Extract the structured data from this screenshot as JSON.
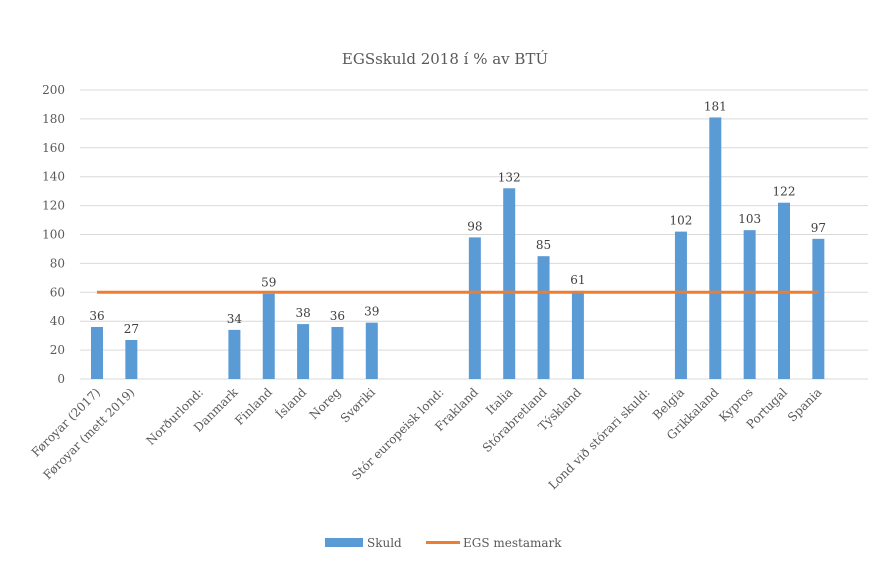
{
  "chart_data": {
    "type": "bar",
    "title": "EGSskuld 2018 í % av BTÚ",
    "xlabel": "",
    "ylabel": "",
    "ylim": [
      0,
      200
    ],
    "yticks": [
      0,
      20,
      40,
      60,
      80,
      100,
      120,
      140,
      160,
      180,
      200
    ],
    "grid": true,
    "legend_position": "bottom",
    "categories": [
      "Føroyar (2017)",
      "Føroyar (mett 2019)",
      "",
      "Norðurlond:",
      "Danmark",
      "Finland",
      "Ísland",
      "Noreg",
      "Svøriki",
      "",
      "Stór europeisk lond:",
      "Frakland",
      "Italia",
      "Stórabretland",
      "Týskland",
      "",
      "Lond við stórari skuld:",
      "Belgia",
      "Grikkaland",
      "Kypros",
      "Portugal",
      "Spania"
    ],
    "series": [
      {
        "name": "Skuld",
        "type": "bar",
        "color": "#5B9BD5",
        "values": [
          36,
          27,
          null,
          null,
          34,
          59,
          38,
          36,
          39,
          null,
          null,
          98,
          132,
          85,
          61,
          null,
          null,
          102,
          181,
          103,
          122,
          97
        ],
        "labels": [
          "36",
          "27",
          "",
          "",
          "34",
          "59",
          "38",
          "36",
          "39",
          "",
          "",
          "98",
          "132",
          "85",
          "61",
          "",
          "",
          "102",
          "181",
          "103",
          "122",
          "97"
        ]
      },
      {
        "name": "EGS mestamark",
        "type": "line",
        "color": "#ED7D31",
        "value": 60
      }
    ]
  }
}
